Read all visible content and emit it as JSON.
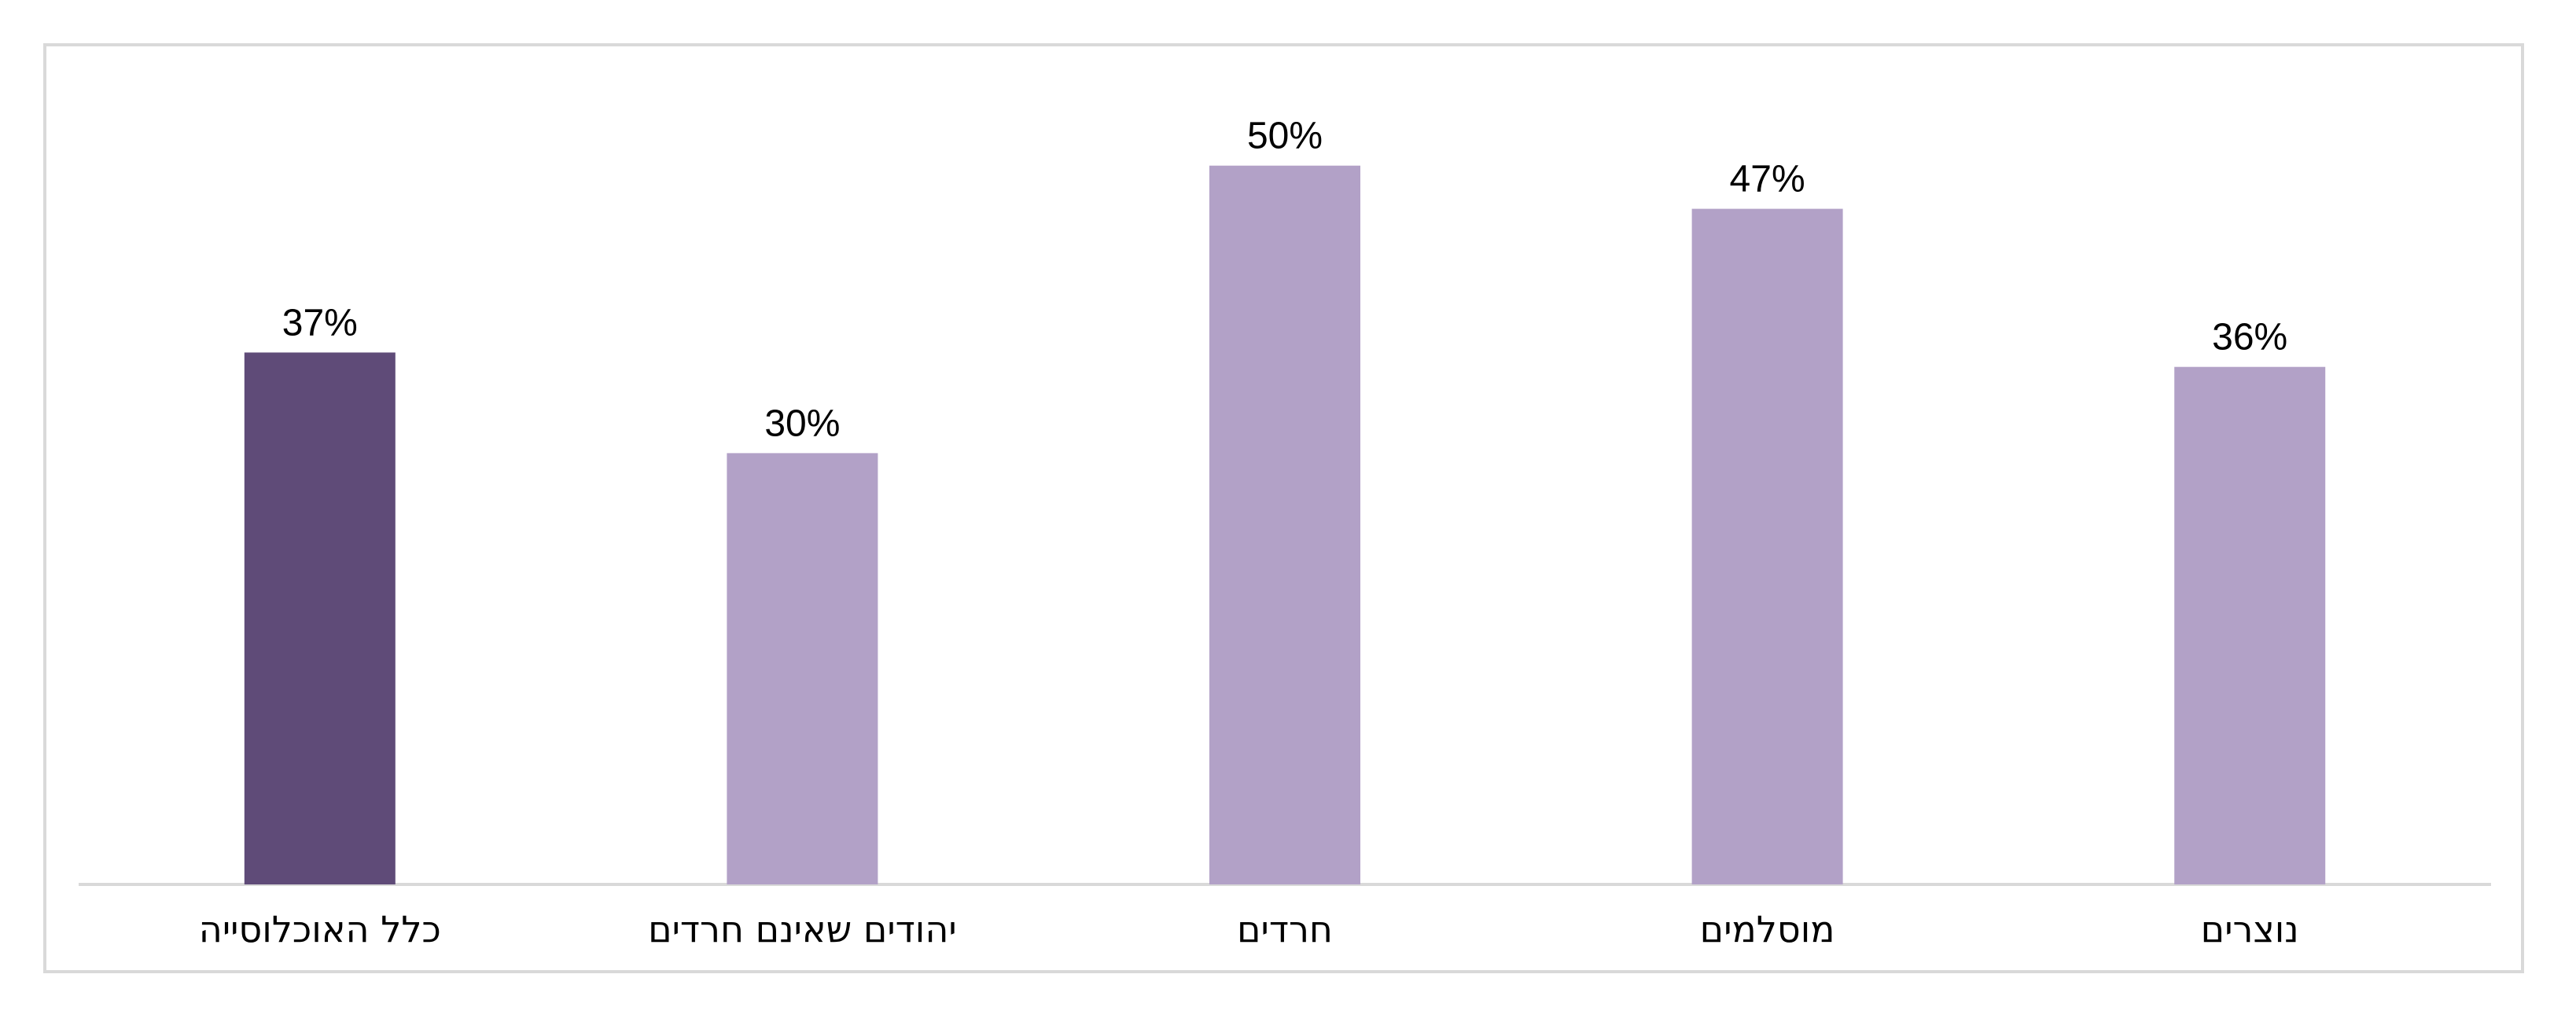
{
  "chart_data": {
    "type": "bar",
    "categories": [
      "כלל האוכלוסייה",
      "יהודים שאינם חרדים",
      "חרדים",
      "מוסלמים",
      "נוצרים"
    ],
    "values": [
      37,
      30,
      50,
      47,
      36
    ],
    "data_labels": [
      "37%",
      "30%",
      "50%",
      "47%",
      "36%"
    ],
    "value_suffix": "%",
    "title": "",
    "xlabel": "",
    "ylabel": "",
    "ylim": [
      0,
      56
    ],
    "grid": false,
    "legend": "none",
    "colors": {
      "highlight": "#5f4b78",
      "default": "#b2a1c7",
      "axis": "#d9d9d9"
    },
    "highlight_index": 0
  }
}
